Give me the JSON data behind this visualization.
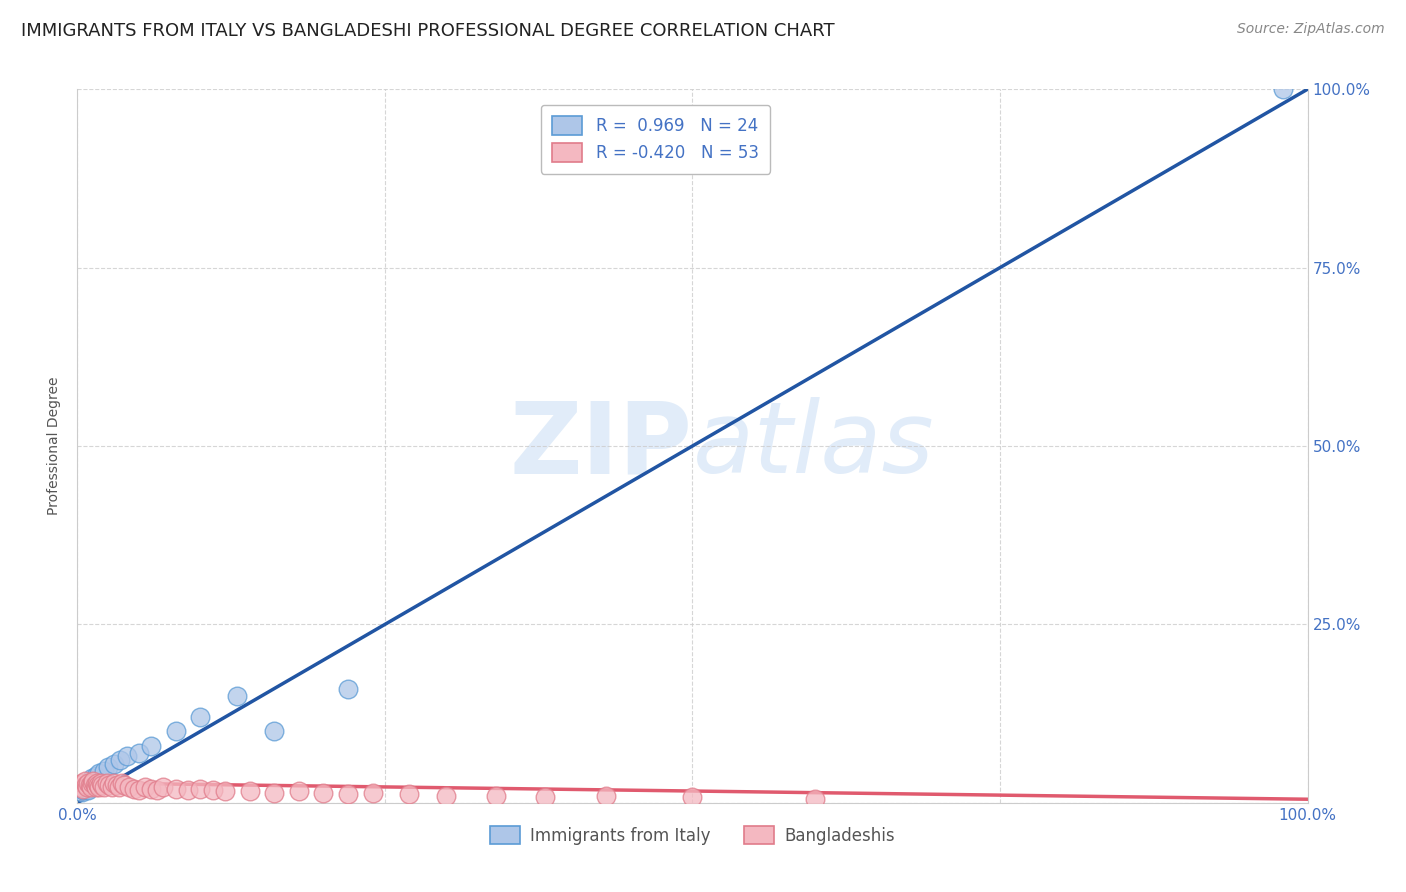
{
  "title": "IMMIGRANTS FROM ITALY VS BANGLADESHI PROFESSIONAL DEGREE CORRELATION CHART",
  "source": "Source: ZipAtlas.com",
  "ylabel": "Professional Degree",
  "watermark": "ZIPatlas",
  "xlim": [
    0.0,
    1.0
  ],
  "ylim": [
    0.0,
    1.0
  ],
  "xticks": [
    0.0,
    0.25,
    0.5,
    0.75,
    1.0
  ],
  "yticks": [
    0.0,
    0.25,
    0.5,
    0.75,
    1.0
  ],
  "xticklabels_bottom": [
    "0.0%",
    "",
    "",
    "",
    "100.0%"
  ],
  "yticklabels_right": [
    "",
    "25.0%",
    "50.0%",
    "75.0%",
    "100.0%"
  ],
  "series": [
    {
      "name": "Immigrants from Italy",
      "R": 0.969,
      "N": 24,
      "color_fill": "#aec6e8",
      "color_edge": "#5b9bd5",
      "trend_color": "#2155a3",
      "x": [
        0.003,
        0.004,
        0.005,
        0.006,
        0.007,
        0.008,
        0.009,
        0.01,
        0.012,
        0.015,
        0.018,
        0.022,
        0.025,
        0.03,
        0.035,
        0.04,
        0.05,
        0.06,
        0.08,
        0.1,
        0.13,
        0.16,
        0.22,
        0.98
      ],
      "y": [
        0.02,
        0.015,
        0.018,
        0.022,
        0.025,
        0.02,
        0.018,
        0.03,
        0.035,
        0.038,
        0.042,
        0.045,
        0.05,
        0.055,
        0.06,
        0.065,
        0.07,
        0.08,
        0.1,
        0.12,
        0.15,
        0.1,
        0.16,
        1.0
      ],
      "trend_x": [
        0.0,
        1.0
      ],
      "trend_y": [
        0.0,
        1.0
      ]
    },
    {
      "name": "Bangladeshis",
      "R": -0.42,
      "N": 53,
      "color_fill": "#f4b8c1",
      "color_edge": "#e07b8a",
      "trend_color": "#e05a6e",
      "x": [
        0.002,
        0.003,
        0.004,
        0.005,
        0.006,
        0.007,
        0.008,
        0.009,
        0.01,
        0.011,
        0.012,
        0.013,
        0.014,
        0.015,
        0.016,
        0.017,
        0.018,
        0.019,
        0.02,
        0.022,
        0.024,
        0.026,
        0.028,
        0.03,
        0.032,
        0.034,
        0.036,
        0.038,
        0.042,
        0.046,
        0.05,
        0.055,
        0.06,
        0.065,
        0.07,
        0.08,
        0.09,
        0.1,
        0.11,
        0.12,
        0.14,
        0.16,
        0.18,
        0.2,
        0.22,
        0.24,
        0.27,
        0.3,
        0.34,
        0.38,
        0.43,
        0.5,
        0.6
      ],
      "y": [
        0.025,
        0.022,
        0.028,
        0.02,
        0.03,
        0.025,
        0.022,
        0.028,
        0.025,
        0.022,
        0.028,
        0.03,
        0.025,
        0.022,
        0.028,
        0.025,
        0.022,
        0.028,
        0.025,
        0.022,
        0.028,
        0.025,
        0.022,
        0.028,
        0.025,
        0.022,
        0.028,
        0.025,
        0.022,
        0.02,
        0.018,
        0.022,
        0.02,
        0.018,
        0.022,
        0.02,
        0.018,
        0.02,
        0.018,
        0.016,
        0.016,
        0.014,
        0.016,
        0.014,
        0.012,
        0.014,
        0.012,
        0.01,
        0.01,
        0.008,
        0.01,
        0.008,
        0.006
      ],
      "trend_x": [
        0.0,
        1.0
      ],
      "trend_y": [
        0.028,
        0.005
      ]
    }
  ],
  "background_color": "#ffffff",
  "grid_color": "#cccccc",
  "title_fontsize": 13,
  "axis_label_fontsize": 10,
  "tick_fontsize": 11,
  "legend_fontsize": 12
}
